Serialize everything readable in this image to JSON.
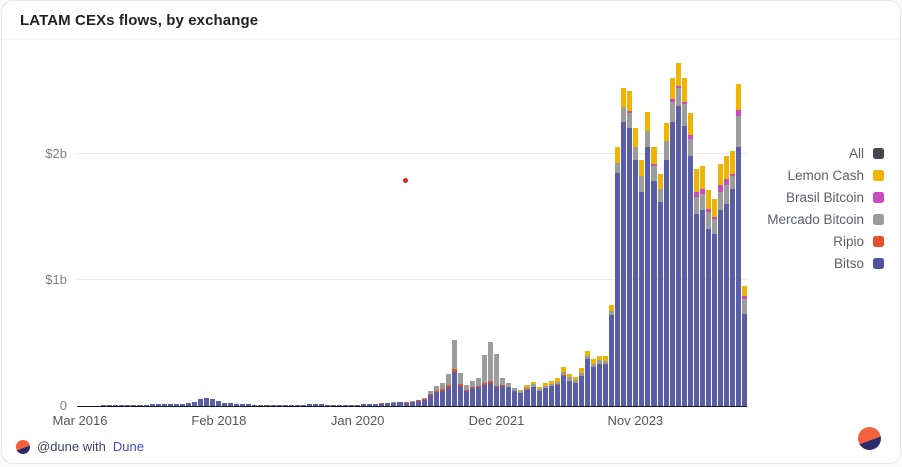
{
  "header": {
    "title": "LATAM CEXs flows, by exchange"
  },
  "footer": {
    "attribution_prefix": "@dune with",
    "attribution_link": "Dune"
  },
  "icons": {
    "dune_logo_colors": {
      "top": "#f4603e",
      "bottom": "#2b2a6c"
    }
  },
  "chart_data": {
    "type": "bar",
    "variant": "stacked-monthly",
    "title": "LATAM CEXs flows, by exchange",
    "unit": "USD billions",
    "bar_count": 111,
    "x_start": "Mar 2016",
    "x_end": "May 2025",
    "ylim": [
      0,
      2.79
    ],
    "grid": "horizontal-only",
    "yticks": [
      {
        "value": 0,
        "label": "0"
      },
      {
        "value": 1,
        "label": "$1b"
      },
      {
        "value": 2,
        "label": "$2b"
      }
    ],
    "xticks": [
      {
        "index": 0,
        "label": "Mar 2016"
      },
      {
        "index": 23,
        "label": "Feb 2018"
      },
      {
        "index": 46,
        "label": "Jan 2020"
      },
      {
        "index": 69,
        "label": "Dec 2021"
      },
      {
        "index": 92,
        "label": "Nov 2023"
      }
    ],
    "legend_position": "right",
    "legend": [
      {
        "label": "All",
        "color": "#46474f"
      },
      {
        "label": "Lemon Cash",
        "color": "#f0b400"
      },
      {
        "label": "Brasil Bitcoin",
        "color": "#c94bbf"
      },
      {
        "label": "Mercado Bitcoin",
        "color": "#9c9c9c"
      },
      {
        "label": "Ripio",
        "color": "#e8502b"
      },
      {
        "label": "Bitso",
        "color": "#5054a4"
      }
    ],
    "series": [
      {
        "name": "Bitso",
        "color": "#5a5ea9",
        "values": [
          0.003,
          0.003,
          0.004,
          0.004,
          0.005,
          0.005,
          0.006,
          0.006,
          0.008,
          0.01,
          0.01,
          0.012,
          0.015,
          0.015,
          0.018,
          0.016,
          0.014,
          0.018,
          0.022,
          0.03,
          0.052,
          0.06,
          0.055,
          0.038,
          0.024,
          0.021,
          0.019,
          0.015,
          0.013,
          0.011,
          0.01,
          0.01,
          0.012,
          0.01,
          0.008,
          0.008,
          0.01,
          0.012,
          0.014,
          0.015,
          0.014,
          0.012,
          0.01,
          0.01,
          0.01,
          0.01,
          0.012,
          0.014,
          0.018,
          0.016,
          0.019,
          0.021,
          0.024,
          0.029,
          0.027,
          0.03,
          0.04,
          0.048,
          0.09,
          0.11,
          0.12,
          0.15,
          0.27,
          0.16,
          0.12,
          0.14,
          0.15,
          0.17,
          0.18,
          0.15,
          0.16,
          0.15,
          0.12,
          0.1,
          0.13,
          0.15,
          0.12,
          0.14,
          0.155,
          0.17,
          0.24,
          0.2,
          0.185,
          0.24,
          0.37,
          0.31,
          0.335,
          0.33,
          0.72,
          1.85,
          2.25,
          2.2,
          1.95,
          1.7,
          2.05,
          1.78,
          1.62,
          1.95,
          2.25,
          2.38,
          2.22,
          1.98,
          1.52,
          1.55,
          1.4,
          1.36,
          1.55,
          1.6,
          1.72,
          2.05,
          0.73
        ]
      },
      {
        "name": "Ripio",
        "color": "#e8502b",
        "values": [
          0,
          0,
          0,
          0,
          0,
          0,
          0,
          0,
          0,
          0,
          0,
          0,
          0,
          0,
          0,
          0,
          0,
          0,
          0,
          0,
          0,
          0,
          0,
          0,
          0,
          0,
          0,
          0,
          0,
          0,
          0,
          0,
          0,
          0,
          0,
          0,
          0,
          0,
          0,
          0,
          0,
          0,
          0,
          0,
          0,
          0,
          0,
          0,
          0,
          0,
          0.001,
          0.001,
          0.002,
          0.003,
          0.003,
          0.004,
          0.005,
          0.005,
          0.008,
          0.01,
          0.012,
          0.015,
          0.02,
          0.012,
          0.008,
          0.01,
          0.012,
          0.012,
          0.015,
          0.01,
          0.005,
          0.004,
          0.003,
          0.002,
          0.002,
          0.002,
          0.001,
          0.001,
          0.001,
          0.001,
          0.002,
          0.002,
          0,
          0,
          0,
          0,
          0,
          0,
          0,
          0,
          0,
          0,
          0,
          0,
          0,
          0,
          0,
          0,
          0,
          0,
          0,
          0,
          0,
          0,
          0,
          0,
          0,
          0,
          0,
          0,
          0
        ]
      },
      {
        "name": "Mercado Bitcoin",
        "color": "#9c9c9c",
        "values": [
          0,
          0,
          0,
          0,
          0,
          0,
          0,
          0,
          0,
          0,
          0,
          0,
          0,
          0,
          0,
          0,
          0,
          0,
          0,
          0,
          0,
          0,
          0,
          0,
          0,
          0,
          0,
          0,
          0,
          0,
          0,
          0,
          0,
          0,
          0,
          0,
          0,
          0,
          0,
          0,
          0,
          0,
          0,
          0,
          0,
          0,
          0,
          0,
          0,
          0,
          0,
          0,
          0.002,
          0.003,
          0.003,
          0.004,
          0.006,
          0.008,
          0.02,
          0.04,
          0.05,
          0.09,
          0.23,
          0.09,
          0.04,
          0.05,
          0.06,
          0.22,
          0.31,
          0.25,
          0.06,
          0.03,
          0.02,
          0.015,
          0.02,
          0.02,
          0.015,
          0.02,
          0.02,
          0.02,
          0.03,
          0.025,
          0.02,
          0.025,
          0.03,
          0.025,
          0.03,
          0.03,
          0.03,
          0.08,
          0.12,
          0.12,
          0.1,
          0.12,
          0.13,
          0.12,
          0.1,
          0.15,
          0.16,
          0.14,
          0.17,
          0.14,
          0.14,
          0.13,
          0.14,
          0.12,
          0.15,
          0.15,
          0.1,
          0.25,
          0.12
        ]
      },
      {
        "name": "Brasil Bitcoin",
        "color": "#c94bbf",
        "values": [
          0,
          0,
          0,
          0,
          0,
          0,
          0,
          0,
          0,
          0,
          0,
          0,
          0,
          0,
          0,
          0,
          0,
          0,
          0,
          0,
          0,
          0,
          0,
          0,
          0,
          0,
          0,
          0,
          0,
          0,
          0,
          0,
          0,
          0,
          0,
          0,
          0,
          0,
          0,
          0,
          0,
          0,
          0,
          0,
          0,
          0,
          0,
          0,
          0,
          0,
          0,
          0,
          0,
          0,
          0,
          0,
          0,
          0,
          0,
          0,
          0,
          0,
          0,
          0,
          0,
          0,
          0,
          0,
          0,
          0,
          0,
          0,
          0,
          0,
          0,
          0,
          0,
          0,
          0,
          0,
          0,
          0,
          0,
          0,
          0,
          0,
          0,
          0,
          0,
          0,
          0,
          0.02,
          0,
          0,
          0,
          0.02,
          0,
          0,
          0.02,
          0.02,
          0.02,
          0.03,
          0.04,
          0.04,
          0.02,
          0.02,
          0.05,
          0.05,
          0.02,
          0.05,
          0.02
        ]
      },
      {
        "name": "Lemon Cash",
        "color": "#f0b400",
        "values": [
          0,
          0,
          0,
          0,
          0,
          0,
          0,
          0,
          0,
          0,
          0,
          0,
          0,
          0,
          0,
          0,
          0,
          0,
          0,
          0,
          0,
          0,
          0,
          0,
          0,
          0,
          0,
          0,
          0,
          0,
          0,
          0,
          0,
          0,
          0,
          0,
          0,
          0,
          0,
          0,
          0,
          0,
          0,
          0,
          0,
          0,
          0,
          0,
          0,
          0,
          0,
          0,
          0,
          0,
          0,
          0,
          0,
          0,
          0,
          0,
          0,
          0,
          0,
          0,
          0,
          0,
          0,
          0,
          0,
          0,
          0,
          0,
          0,
          0.01,
          0.015,
          0.02,
          0.015,
          0.02,
          0.025,
          0.03,
          0.035,
          0.03,
          0.025,
          0.035,
          0.04,
          0.035,
          0.035,
          0.04,
          0.05,
          0.12,
          0.15,
          0.16,
          0.15,
          0.13,
          0.15,
          0.13,
          0.12,
          0.14,
          0.17,
          0.18,
          0.19,
          0.17,
          0.18,
          0.18,
          0.15,
          0.14,
          0.17,
          0.18,
          0.18,
          0.2,
          0.08
        ]
      }
    ],
    "annotations": {
      "stray_dot": {
        "color": "#dd2222",
        "x_fraction": 0.49,
        "y_value": 1.78
      }
    }
  }
}
